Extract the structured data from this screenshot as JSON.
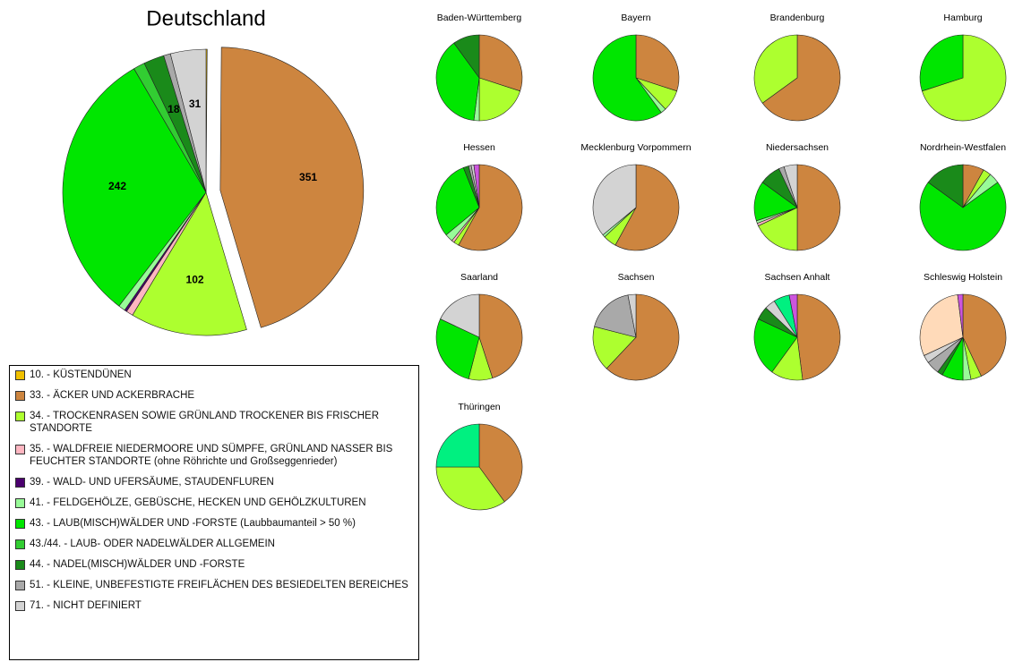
{
  "chart_data": [
    {
      "type": "pie",
      "title": "Deutschland",
      "explode_largest": true,
      "categories": [
        "10. - KÜSTENDÜNEN",
        "33. - ÄCKER UND ACKERBRACHE",
        "34. - TROCKENRASEN SOWIE GRÜNLAND TROCKENER BIS FRISCHER STANDORTE",
        "35. - WALDFREIE NIEDERMOORE UND SÜMPFE, GRÜNLAND NASSER BIS FEUCHTER STANDORTE (ohne Röhrichte und Großseggenrieder)",
        "39. - WALD- UND UFERSÄUME, STAUDENFLUREN",
        "41. - FELDGEHÖLZE, GEBÜSCHE, HECKEN UND GEHÖLZKULTUREN",
        "43. - LAUB(MISCH)WÄLDER UND -FORSTE (Laubbaumanteil > 50 %)",
        "43./44. - LAUB- ODER NADELWÄLDER ALLGEMEIN",
        "44. - NADEL(MISCH)WÄLDER UND -FORSTE",
        "51. - KLEINE, UNBEFESTIGTE FREIFLÄCHEN DES BESIEDELTEN BEREICHES",
        "71. - NICHT DEFINIERT",
        null,
        null,
        null
      ],
      "colors": [
        "#f0c000",
        "#cd853f",
        "#adff2f",
        "#ffb6c1",
        "#4b006e",
        "#98fb98",
        "#00e600",
        "#32cd32",
        "#1a8a1a",
        "#a9a9a9",
        "#d3d3d3",
        "#00f080",
        "#ffdab9",
        "#cc55dd"
      ],
      "values": [
        1,
        351,
        102,
        6,
        2,
        6,
        242,
        10,
        18,
        6,
        31,
        0,
        0,
        0
      ],
      "value_labels": [
        null,
        "351",
        "102",
        null,
        null,
        null,
        "242",
        null,
        "18",
        null,
        "31",
        null,
        null,
        null
      ]
    },
    {
      "type": "pie",
      "title": "Baden-Württemberg",
      "values": [
        0,
        30,
        20,
        0,
        0,
        2,
        38,
        0,
        10,
        0,
        0,
        0,
        0,
        0
      ]
    },
    {
      "type": "pie",
      "title": "Bayern",
      "values": [
        0,
        30,
        8,
        0,
        0,
        2,
        60,
        0,
        0,
        0,
        0,
        0,
        0,
        0
      ]
    },
    {
      "type": "pie",
      "title": "Brandenburg",
      "values": [
        0,
        65,
        35,
        0,
        0,
        0,
        0,
        0,
        0,
        0,
        0,
        0,
        0,
        0
      ]
    },
    {
      "type": "pie",
      "title": "Hamburg",
      "values": [
        0,
        0,
        70,
        0,
        0,
        0,
        30,
        0,
        0,
        0,
        0,
        0,
        0,
        0
      ]
    },
    {
      "type": "pie",
      "title": "Hessen",
      "values": [
        0,
        58,
        2,
        1,
        0,
        3,
        30,
        0,
        2,
        1,
        1,
        0,
        0,
        2
      ]
    },
    {
      "type": "pie",
      "title": "Mecklenburg Vorpommern",
      "values": [
        0,
        58,
        5,
        0,
        0,
        1,
        0,
        0,
        0,
        0,
        36,
        0,
        0,
        0
      ]
    },
    {
      "type": "pie",
      "title": "Niedersachsen",
      "values": [
        0,
        50,
        18,
        1,
        0,
        1,
        15,
        0,
        8,
        2,
        5,
        0,
        0,
        0
      ]
    },
    {
      "type": "pie",
      "title": "Nordrhein-Westfalen",
      "values": [
        0,
        8,
        3,
        0,
        0,
        4,
        70,
        0,
        15,
        0,
        0,
        0,
        0,
        0
      ]
    },
    {
      "type": "pie",
      "title": "Saarland",
      "values": [
        0,
        45,
        9,
        0,
        0,
        0,
        28,
        0,
        0,
        0,
        18,
        0,
        0,
        0
      ]
    },
    {
      "type": "pie",
      "title": "Sachsen",
      "values": [
        0,
        62,
        17,
        0,
        0,
        0,
        0,
        0,
        0,
        18,
        3,
        0,
        0,
        0
      ]
    },
    {
      "type": "pie",
      "title": "Sachsen Anhalt",
      "values": [
        0,
        48,
        12,
        0,
        0,
        0,
        22,
        0,
        5,
        0,
        4,
        6,
        0,
        3
      ]
    },
    {
      "type": "pie",
      "title": "Schleswig Holstein",
      "values": [
        0,
        43,
        4,
        0,
        0,
        3,
        8,
        0,
        2,
        5,
        3,
        0,
        30,
        2
      ]
    },
    {
      "type": "pie",
      "title": "Thüringen",
      "values": [
        0,
        40,
        35,
        0,
        0,
        0,
        0,
        0,
        0,
        0,
        0,
        25,
        0,
        0
      ]
    }
  ]
}
